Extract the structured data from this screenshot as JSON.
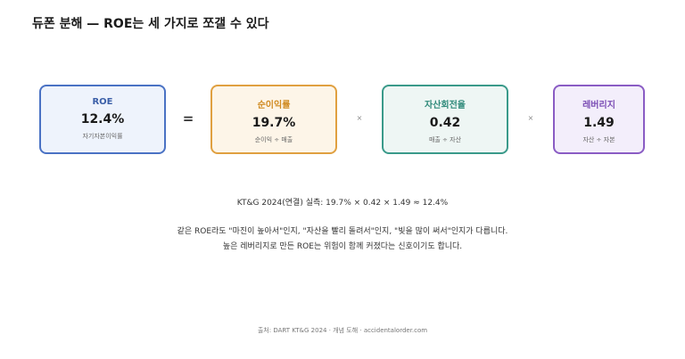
{
  "title": "듀폰 분해 — ROE는 세 가지로 쪼갤 수 있다",
  "boxes": [
    {
      "label": "ROE",
      "value": "12.4%",
      "sub": "자기자본이익률"
    },
    {
      "label": "순이익률",
      "value": "19.7%",
      "sub": "순이익 ÷ 매출"
    },
    {
      "label": "자산회전율",
      "value": "0.42",
      "sub": "매출 ÷ 자산"
    },
    {
      "label": "레버리지",
      "value": "1.49",
      "sub": "자산 ÷ 자본"
    }
  ],
  "operators": [
    "=",
    "×",
    "×"
  ],
  "note": "KT&G 2024(연결) 실측: 19.7% × 0.42 × 1.49 ≈ 12.4%",
  "body": [
    "같은 ROE라도 \"마진이 높아서\"인지, \"자산을 빨리 돌려서\"인지, \"빚을 많이 써서\"인지가 다릅니다.",
    "높은 레버리지로 만든 ROE는 위험이 함께 커졌다는 신호이기도 합니다."
  ],
  "source": "출처: DART KT&G 2024 · 개념 도해 · accidentalorder.com"
}
